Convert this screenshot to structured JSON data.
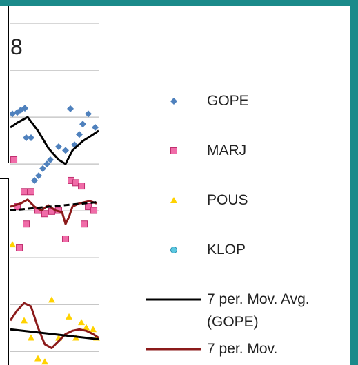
{
  "chart_data": {
    "type": "scatter",
    "title": "8",
    "xlim": [
      0,
      16
    ],
    "ylim": [
      -0.29,
      7.5
    ],
    "yticks": [
      0,
      1,
      2,
      3,
      4,
      5,
      6,
      7
    ],
    "grid": true,
    "series": [
      {
        "name": "GOPE",
        "kind": "points",
        "marker": "diamond",
        "color": "#4f81bd",
        "x": [
          0.38,
          1.25,
          1.88,
          2.63,
          2.88,
          3.75,
          4.38,
          5.13,
          5.88,
          6.63,
          7.25,
          8.75,
          10,
          10.88,
          11.63,
          12.5,
          13.13,
          14.13,
          15.38
        ],
        "values": [
          5.07,
          5.1,
          5.15,
          5.19,
          4.56,
          4.56,
          3.65,
          3.75,
          3.9,
          4.0,
          4.09,
          4.37,
          4.29,
          5.18,
          4.41,
          4.63,
          4.85,
          5.07,
          4.78
        ]
      },
      {
        "name": "MARJ",
        "kind": "points",
        "marker": "square",
        "color": "#f06ca8",
        "x": [
          0.63,
          2.5,
          3.75,
          1.25,
          2.88,
          1.63,
          5,
          6.25,
          7.5,
          8.75,
          10,
          11,
          11.88,
          12.88,
          13.38,
          14.13,
          15.13
        ],
        "values": [
          4.09,
          3.41,
          3.41,
          3.09,
          2.72,
          2.21,
          3.01,
          2.94,
          2.99,
          3.01,
          2.4,
          3.65,
          3.6,
          3.53,
          2.72,
          3.09,
          3.01
        ]
      },
      {
        "name": "POUS",
        "kind": "points",
        "marker": "triangle",
        "color": "#ffd200",
        "x": [
          0.38,
          2.5,
          3.75,
          5,
          6.25,
          7.5,
          8.75,
          10.63,
          11.88,
          12.88,
          13.75,
          15,
          15.63
        ],
        "values": [
          2.28,
          0.66,
          0.29,
          -0.15,
          -0.22,
          1.1,
          0.29,
          0.74,
          0.29,
          0.62,
          0.51,
          0.47,
          0.29
        ]
      },
      {
        "name": "KLOP",
        "kind": "points",
        "marker": "circle",
        "color": "#5bc8e0",
        "x": [],
        "values": []
      },
      {
        "name": "7 per. Mov. Avg. (GOPE)",
        "kind": "line",
        "color": "#000000",
        "x": [
          0,
          1.25,
          3.13,
          5,
          6.88,
          8.75,
          10,
          11.25,
          13.13,
          15,
          16
        ],
        "values": [
          4.78,
          4.88,
          5,
          4.71,
          4.34,
          4.09,
          4.0,
          4.29,
          4.49,
          4.63,
          4.71
        ]
      },
      {
        "name": "7 per. Mov.",
        "kind": "line",
        "color": "#8b1a1a",
        "x": [
          0,
          1.88,
          3.13,
          4.38,
          5.63,
          6.88,
          8.13,
          9.38,
          10,
          10.63,
          11.25,
          12.5,
          14.38,
          15.63
        ],
        "values": [
          3.09,
          3.16,
          3.24,
          3.09,
          3.01,
          3.12,
          3.01,
          2.97,
          2.72,
          2.87,
          3.09,
          3.16,
          3.21,
          3.16
        ]
      },
      {
        "kind": "line",
        "color": "#8b1a1a",
        "x": [
          0,
          1.25,
          2.5,
          3.75,
          5,
          6.25,
          7.5,
          8.75,
          10,
          11.25,
          12.5,
          13.75,
          15,
          16
        ],
        "values": [
          0.66,
          0.88,
          1.03,
          0.96,
          0.51,
          0.15,
          0.07,
          0.22,
          0.37,
          0.44,
          0.47,
          0.44,
          0.37,
          0.29
        ]
      },
      {
        "kind": "line",
        "color": "#000000",
        "dashed": true,
        "x": [
          0,
          16
        ],
        "values": [
          3.01,
          3.19
        ]
      },
      {
        "kind": "line",
        "color": "#000000",
        "x": [
          0,
          16
        ],
        "values": [
          0.47,
          0.26
        ]
      }
    ]
  }
}
